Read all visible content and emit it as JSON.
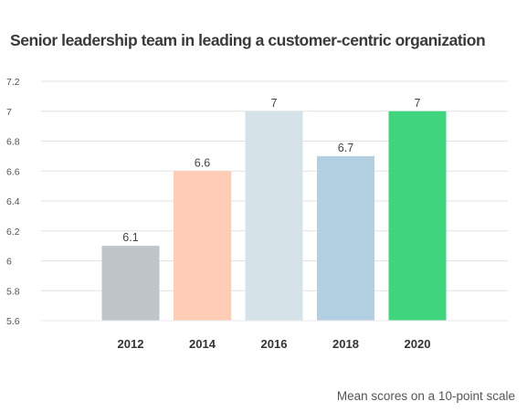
{
  "chart_data": {
    "type": "bar",
    "title": "Senior leadership team in leading a customer-centric organization",
    "categories": [
      "2012",
      "2014",
      "2016",
      "2018",
      "2020"
    ],
    "values": [
      6.1,
      6.6,
      7,
      6.7,
      7
    ],
    "data_labels": [
      "6.1",
      "6.6",
      "7",
      "6.7",
      "7"
    ],
    "bar_colors": [
      "#bfc5c9",
      "#ffcdb6",
      "#d5e3e8",
      "#b3d0e3",
      "#3fd57f"
    ],
    "ylim": [
      5.6,
      7.2
    ],
    "y_ticks": [
      5.6,
      5.8,
      6,
      6.2,
      6.4,
      6.6,
      6.8,
      7,
      7.2
    ],
    "y_tick_labels": [
      "5.6",
      "5.8",
      "6",
      "6.2",
      "6.4",
      "6.6",
      "6.8",
      "7",
      "7.2"
    ],
    "grid": true,
    "xlabel": "",
    "ylabel": "",
    "note": "Mean scores on a 10-point scale"
  }
}
